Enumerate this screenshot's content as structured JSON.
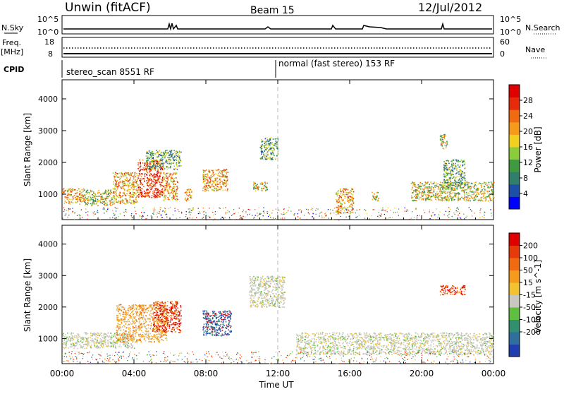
{
  "header": {
    "station": "Unwin (fitACF)",
    "beam": "Beam 15",
    "date": "12/Jul/2012"
  },
  "nsky_panel": {
    "left_label": "N.Sky",
    "right_label": "N.Search",
    "tick_top": "10^5",
    "tick_bottom": "10^0"
  },
  "freq_panel": {
    "left_label_1": "Freq.",
    "left_label_2": "[MHz]",
    "left_ticks": [
      "18",
      "8"
    ],
    "right_label": "Nave",
    "right_ticks": [
      "60",
      "0"
    ]
  },
  "cpid_panel": {
    "label": "CPID",
    "modes": [
      "stereo_scan 8551 RF",
      "normal (fast stereo) 153 RF"
    ]
  },
  "chart_data": [
    {
      "type": "heatmap",
      "name": "power",
      "ylabel": "Slant Range [km]",
      "xlabel": "Time UT",
      "x_range": [
        0,
        24
      ],
      "y_range": [
        200,
        4600
      ],
      "y_ticks": [
        "1000",
        "2000",
        "3000",
        "4000"
      ],
      "colorbar": {
        "label": "Power [dB]",
        "ticks": [
          "4",
          "8",
          "12",
          "16",
          "20",
          "24",
          "28"
        ],
        "range": [
          0,
          32
        ],
        "colors": [
          "#0000ff",
          "#1c4fa8",
          "#2f7f6a",
          "#3f9a3f",
          "#8ccc3a",
          "#f2d020",
          "#f59a1a",
          "#f06a10",
          "#e62a0a",
          "#e00000"
        ]
      },
      "echo_regions": [
        {
          "t0": 0.0,
          "t1": 1.2,
          "r0": 700,
          "r1": 1200,
          "level": "high"
        },
        {
          "t0": 1.2,
          "t1": 2.8,
          "r0": 650,
          "r1": 1150,
          "level": "mid"
        },
        {
          "t0": 2.8,
          "t1": 4.2,
          "r0": 700,
          "r1": 1700,
          "level": "high"
        },
        {
          "t0": 4.2,
          "t1": 5.6,
          "r0": 900,
          "r1": 2100,
          "level": "peak"
        },
        {
          "t0": 4.6,
          "t1": 6.6,
          "r0": 1800,
          "r1": 2400,
          "level": "low"
        },
        {
          "t0": 5.6,
          "t1": 6.4,
          "r0": 800,
          "r1": 1700,
          "level": "high"
        },
        {
          "t0": 6.8,
          "t1": 7.2,
          "r0": 800,
          "r1": 1200,
          "level": "high"
        },
        {
          "t0": 7.8,
          "t1": 9.2,
          "r0": 1100,
          "r1": 1800,
          "level": "high"
        },
        {
          "t0": 10.6,
          "t1": 11.4,
          "r0": 1100,
          "r1": 1400,
          "level": "mid"
        },
        {
          "t0": 11.0,
          "t1": 12.0,
          "r0": 2100,
          "r1": 2800,
          "level": "low"
        },
        {
          "t0": 15.2,
          "t1": 16.2,
          "r0": 400,
          "r1": 1200,
          "level": "high"
        },
        {
          "t0": 17.2,
          "t1": 17.6,
          "r0": 800,
          "r1": 1100,
          "level": "mid"
        },
        {
          "t0": 21.0,
          "t1": 21.4,
          "r0": 2400,
          "r1": 2900,
          "level": "mid"
        },
        {
          "t0": 19.4,
          "t1": 24.0,
          "r0": 800,
          "r1": 1400,
          "level": "mid"
        },
        {
          "t0": 21.2,
          "t1": 22.4,
          "r0": 1200,
          "r1": 2100,
          "level": "low"
        }
      ]
    },
    {
      "type": "heatmap",
      "name": "velocity",
      "ylabel": "Slant Range [km]",
      "xlabel": "Time UT",
      "x_range": [
        0,
        24
      ],
      "y_range": [
        200,
        4600
      ],
      "y_ticks": [
        "1000",
        "2000",
        "3000",
        "4000"
      ],
      "x_ticks": [
        "00:00",
        "04:00",
        "08:00",
        "12:00",
        "16:00",
        "20:00",
        "00:00"
      ],
      "colorbar": {
        "label": "Velocity [m s^-1]",
        "ticks": [
          "200",
          "100",
          "50",
          "15",
          "-15",
          "-50",
          "-100",
          "-200"
        ],
        "colors": [
          "#1f3fb0",
          "#2f6fa0",
          "#2f8f6f",
          "#5fc040",
          "#c8c8c0",
          "#f2c230",
          "#f59a1a",
          "#f06a10",
          "#e63a0a",
          "#e00000"
        ]
      },
      "echo_regions": [
        {
          "t0": 0.0,
          "t1": 4.0,
          "r0": 700,
          "r1": 1200,
          "level": "gray"
        },
        {
          "t0": 3.0,
          "t1": 5.8,
          "r0": 900,
          "r1": 2100,
          "level": "orange"
        },
        {
          "t0": 5.0,
          "t1": 6.6,
          "r0": 1200,
          "r1": 2200,
          "level": "red"
        },
        {
          "t0": 7.8,
          "t1": 9.4,
          "r0": 1100,
          "r1": 1900,
          "level": "blue"
        },
        {
          "t0": 10.4,
          "t1": 12.4,
          "r0": 2000,
          "r1": 3000,
          "level": "gray"
        },
        {
          "t0": 13.0,
          "t1": 24.0,
          "r0": 500,
          "r1": 1200,
          "level": "gray"
        },
        {
          "t0": 21.0,
          "t1": 22.4,
          "r0": 2400,
          "r1": 2700,
          "level": "red"
        }
      ]
    }
  ]
}
